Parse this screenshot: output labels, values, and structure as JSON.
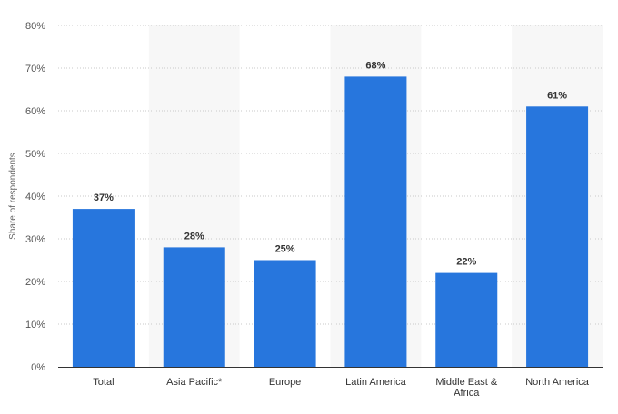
{
  "chart_data": {
    "type": "bar",
    "title": "",
    "xlabel": "",
    "ylabel": "Share of respondents",
    "categories": [
      "Total",
      "Asia Pacific*",
      "Europe",
      "Latin America",
      "Middle East & Africa",
      "North America"
    ],
    "category_lines": [
      [
        "Total"
      ],
      [
        "Asia Pacific*"
      ],
      [
        "Europe"
      ],
      [
        "Latin America"
      ],
      [
        "Middle East &",
        "Africa"
      ],
      [
        "North America"
      ]
    ],
    "values": [
      37,
      28,
      25,
      68,
      22,
      61
    ],
    "value_labels": [
      "37%",
      "28%",
      "25%",
      "68%",
      "22%",
      "61%"
    ],
    "ylim": [
      0,
      80
    ],
    "yticks": [
      0,
      10,
      20,
      30,
      40,
      50,
      60,
      70,
      80
    ],
    "ytick_labels": [
      "0%",
      "10%",
      "20%",
      "30%",
      "40%",
      "50%",
      "60%",
      "70%",
      "80%"
    ],
    "grid": true,
    "legend": "none",
    "colors": {
      "bar": "#2776dd",
      "band": "#f7f7f7",
      "grid": "#c8c8c8",
      "axis": "#333333"
    }
  }
}
